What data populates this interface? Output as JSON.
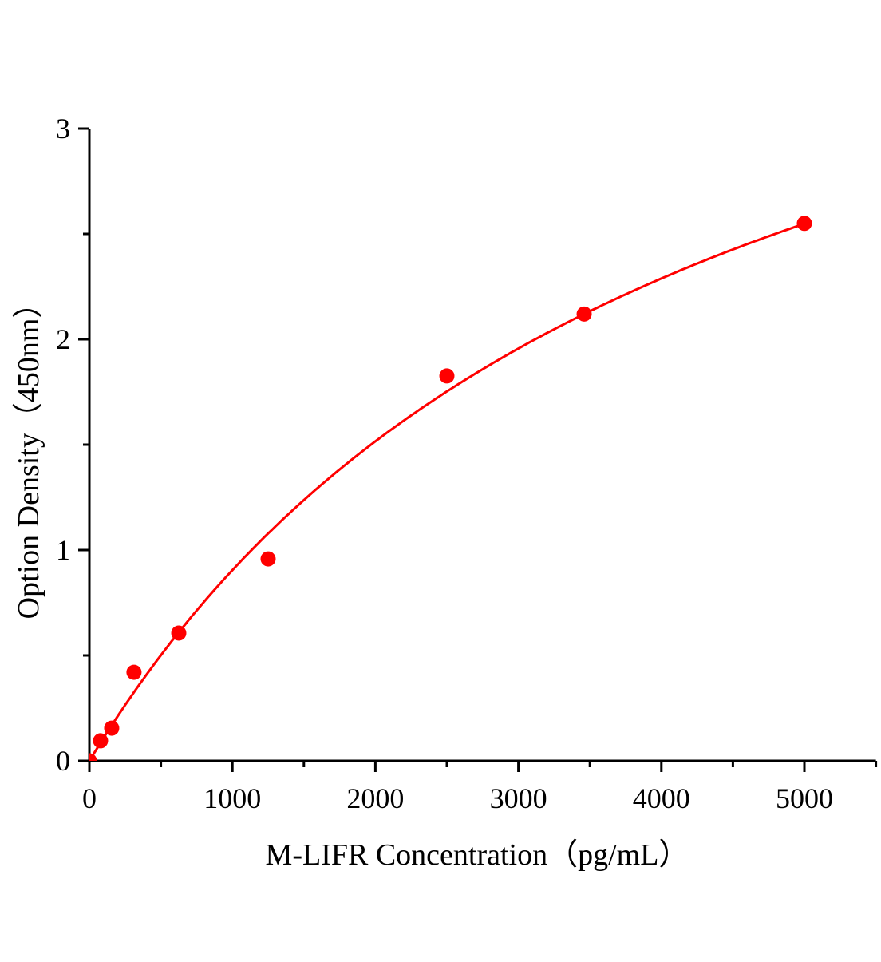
{
  "chart_data": {
    "type": "scatter",
    "title": "",
    "xlabel": "M-LIFR Concentration（pg/mL）",
    "ylabel": "Option Density（450nm）",
    "xlim": [
      0,
      5500
    ],
    "ylim": [
      0,
      3
    ],
    "x_ticks": [
      0,
      1000,
      2000,
      3000,
      4000,
      5000
    ],
    "x_tick_labels": [
      "0",
      "1000",
      "2000",
      "3000",
      "4000",
      "5000"
    ],
    "y_ticks": [
      0,
      1,
      2,
      3
    ],
    "y_tick_labels": [
      "0",
      "1",
      "2",
      "3"
    ],
    "x_minor_step": 500,
    "y_minor_step": 0.5,
    "grid": false,
    "legend": "none",
    "color": "#ff0000",
    "series": [
      {
        "x": [
          0,
          78,
          156,
          312,
          625,
          1250,
          2500,
          3460,
          5000
        ],
        "y": [
          0,
          0.095,
          0.155,
          0.42,
          0.606,
          0.958,
          1.826,
          2.12,
          2.55
        ],
        "fit": "curve"
      }
    ]
  }
}
